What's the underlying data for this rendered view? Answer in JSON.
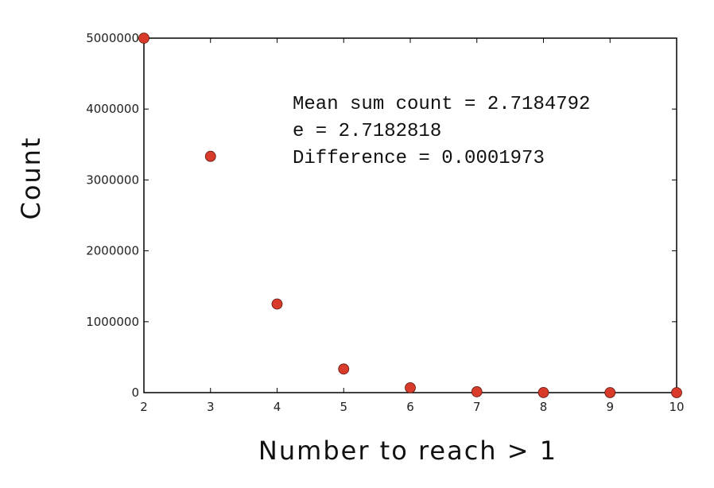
{
  "chart_data": {
    "type": "scatter",
    "x": [
      2,
      3,
      4,
      5,
      6,
      7,
      8,
      9,
      10
    ],
    "y": [
      5000000,
      3333000,
      1250000,
      333000,
      69000,
      12000,
      1800,
      200,
      20
    ],
    "xlim": [
      2,
      10
    ],
    "ylim": [
      0,
      5000000
    ],
    "xticks": [
      "2",
      "3",
      "4",
      "5",
      "6",
      "7",
      "8",
      "9",
      "10"
    ],
    "yticks": [
      "0",
      "1000000",
      "2000000",
      "3000000",
      "4000000",
      "5000000"
    ],
    "xlabel": "Number to reach > 1",
    "ylabel": "Count",
    "grid": false,
    "marker_color": "#d93b2b",
    "annotations": [
      "Mean sum count = 2.7184792",
      "e = 2.7182818",
      "Difference = 0.0001973"
    ]
  }
}
